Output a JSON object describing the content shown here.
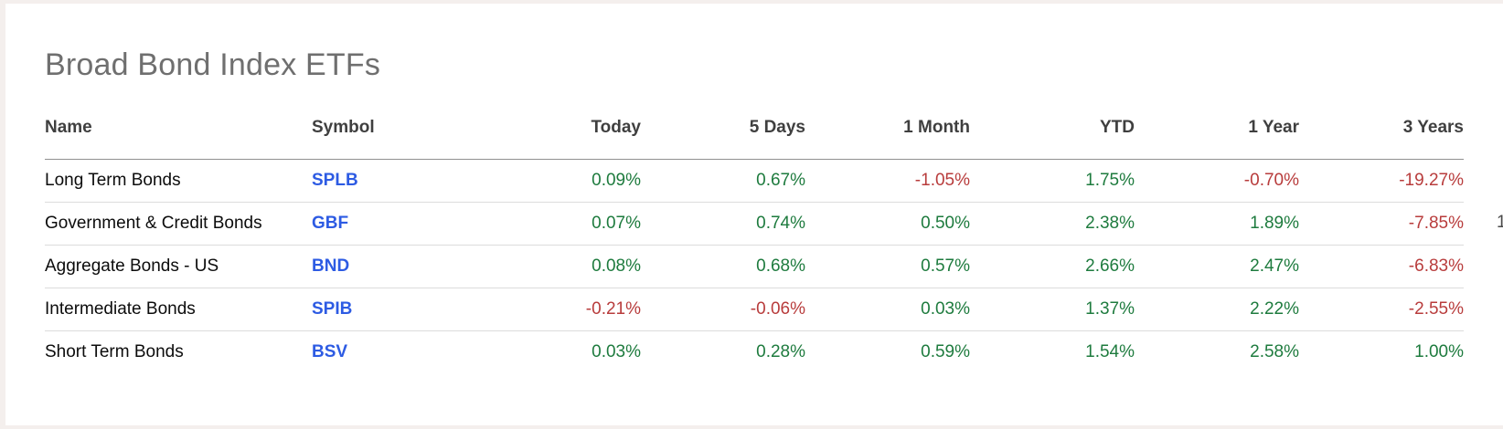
{
  "page": {
    "title": "Broad Bond Index ETFs"
  },
  "colors": {
    "page-bg": "#f4efed",
    "card-bg": "#ffffff",
    "title": "#6f6f6f",
    "header-text": "#3f3f3f",
    "name-text": "#0c0c0c",
    "symbol-link": "#2d5be3",
    "positive": "#1e7b3e",
    "negative": "#b83c3c",
    "rule-dark": "#909090",
    "rule-light": "#dcdcdc"
  },
  "table": {
    "columns": [
      {
        "key": "name",
        "label": "Name",
        "align": "left"
      },
      {
        "key": "symbol",
        "label": "Symbol",
        "align": "left"
      },
      {
        "key": "today",
        "label": "Today",
        "align": "right"
      },
      {
        "key": "5-days",
        "label": "5 Days",
        "align": "right"
      },
      {
        "key": "1-month",
        "label": "1 Month",
        "align": "right"
      },
      {
        "key": "ytd",
        "label": "YTD",
        "align": "right"
      },
      {
        "key": "1-year",
        "label": "1 Year",
        "align": "right"
      },
      {
        "key": "3-years",
        "label": "3 Years",
        "align": "right"
      }
    ],
    "rows": [
      {
        "name": "Long Term Bonds",
        "symbol": "SPLB",
        "values": [
          {
            "text": "0.09%",
            "tone": "green"
          },
          {
            "text": "0.67%",
            "tone": "green"
          },
          {
            "text": "-1.05%",
            "tone": "red"
          },
          {
            "text": "1.75%",
            "tone": "green"
          },
          {
            "text": "-0.70%",
            "tone": "red"
          },
          {
            "text": "-19.27%",
            "tone": "red"
          }
        ]
      },
      {
        "name": "Government & Credit Bonds",
        "symbol": "GBF",
        "values": [
          {
            "text": "0.07%",
            "tone": "green"
          },
          {
            "text": "0.74%",
            "tone": "green"
          },
          {
            "text": "0.50%",
            "tone": "green"
          },
          {
            "text": "2.38%",
            "tone": "green"
          },
          {
            "text": "1.89%",
            "tone": "green"
          },
          {
            "text": "-7.85%",
            "tone": "red"
          }
        ]
      },
      {
        "name": "Aggregate Bonds - US",
        "symbol": "BND",
        "values": [
          {
            "text": "0.08%",
            "tone": "green"
          },
          {
            "text": "0.68%",
            "tone": "green"
          },
          {
            "text": "0.57%",
            "tone": "green"
          },
          {
            "text": "2.66%",
            "tone": "green"
          },
          {
            "text": "2.47%",
            "tone": "green"
          },
          {
            "text": "-6.83%",
            "tone": "red"
          }
        ]
      },
      {
        "name": "Intermediate Bonds",
        "symbol": "SPIB",
        "values": [
          {
            "text": "-0.21%",
            "tone": "red"
          },
          {
            "text": "-0.06%",
            "tone": "red"
          },
          {
            "text": "0.03%",
            "tone": "green"
          },
          {
            "text": "1.37%",
            "tone": "green"
          },
          {
            "text": "2.22%",
            "tone": "green"
          },
          {
            "text": "-2.55%",
            "tone": "red"
          }
        ]
      },
      {
        "name": "Short Term Bonds",
        "symbol": "BSV",
        "values": [
          {
            "text": "0.03%",
            "tone": "green"
          },
          {
            "text": "0.28%",
            "tone": "green"
          },
          {
            "text": "0.59%",
            "tone": "green"
          },
          {
            "text": "1.54%",
            "tone": "green"
          },
          {
            "text": "2.58%",
            "tone": "green"
          },
          {
            "text": "1.00%",
            "tone": "green"
          }
        ]
      }
    ]
  },
  "clipped_edge_fragment": {
    "text": "1"
  }
}
